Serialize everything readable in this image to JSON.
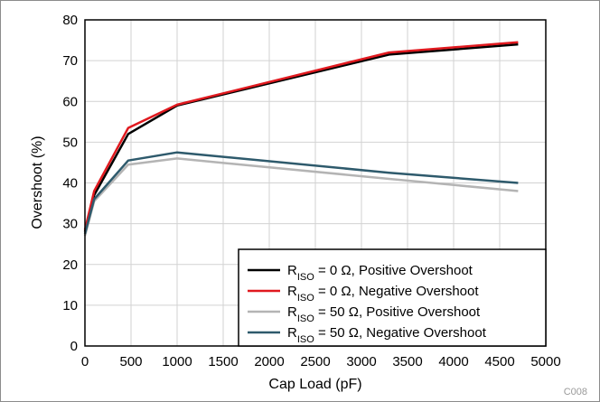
{
  "chart_data": {
    "type": "line",
    "xlabel": "Cap Load (pF)",
    "ylabel": "Overshoot (%)",
    "xlim": [
      0,
      5000
    ],
    "ylim": [
      0,
      80
    ],
    "x_ticks": [
      0,
      500,
      1000,
      1500,
      2000,
      2500,
      3000,
      3500,
      4000,
      4500,
      5000
    ],
    "y_ticks": [
      0,
      10,
      20,
      30,
      40,
      50,
      60,
      70,
      80
    ],
    "grid": true,
    "legend_position": "bottom-right",
    "figure_code": "C008",
    "series": [
      {
        "name": "RISO = 0 Ω, Positive Overshoot",
        "legend_main": "R",
        "legend_sub": "ISO",
        "legend_rest": " = 0 Ω, Positive Overshoot",
        "color": "#000000",
        "x": [
          0,
          100,
          470,
          1000,
          3300,
          4700
        ],
        "y": [
          28,
          37,
          52,
          59,
          71.5,
          74
        ]
      },
      {
        "name": "RISO = 0 Ω, Negative Overshoot",
        "legend_main": "R",
        "legend_sub": "ISO",
        "legend_rest": " = 0 Ω, Negative Overshoot",
        "color": "#e0191f",
        "x": [
          0,
          100,
          470,
          1000,
          3300,
          4700
        ],
        "y": [
          28.5,
          38,
          53.5,
          59.2,
          72,
          74.5
        ]
      },
      {
        "name": "RISO = 50 Ω, Positive Overshoot",
        "legend_main": "R",
        "legend_sub": "ISO",
        "legend_rest": " = 50 Ω, Positive Overshoot",
        "color": "#b4b4b4",
        "x": [
          0,
          100,
          470,
          1000,
          3300,
          4700
        ],
        "y": [
          27,
          35.5,
          44.5,
          46,
          41,
          38
        ]
      },
      {
        "name": "RISO = 50 Ω, Negative Overshoot",
        "legend_main": "R",
        "legend_sub": "ISO",
        "legend_rest": " = 50 Ω, Negative Overshoot",
        "color": "#2e5a6c",
        "x": [
          0,
          100,
          470,
          1000,
          3300,
          4700
        ],
        "y": [
          27.5,
          36,
          45.5,
          47.5,
          42.5,
          40
        ]
      }
    ]
  }
}
